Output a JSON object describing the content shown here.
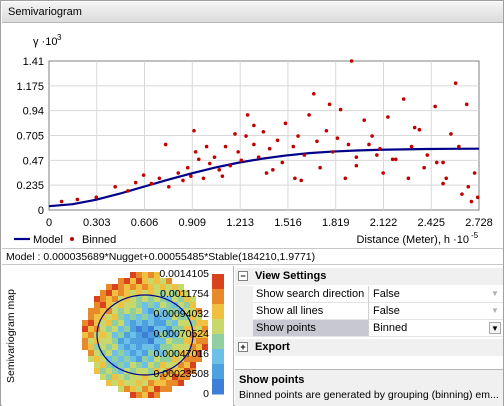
{
  "window": {
    "title": "Semivariogram"
  },
  "chart_data": {
    "type": "scatter",
    "ylabel_text": "γ ·10",
    "ylabel_exp": "3",
    "xlabel_text": "Distance (Meter), h ·10",
    "xlabel_exp": "-5",
    "x_ticks": [
      "0",
      "0.303",
      "0.606",
      "0.909",
      "1.213",
      "1.516",
      "1.819",
      "2.122",
      "2.425",
      "2.728"
    ],
    "y_ticks": [
      "0",
      "0.235",
      "0.47",
      "0.705",
      "0.94",
      "1.175",
      "1.41"
    ],
    "xlim": [
      0,
      2.728
    ],
    "ylim": [
      0,
      1.41
    ],
    "grid": true,
    "legend": [
      "Model",
      "Binned"
    ],
    "legend_position": "bottom-left",
    "colors": {
      "model": "#00008b",
      "binned": "#c00000",
      "grid": "#d8d8d8"
    },
    "model_curve": {
      "x": [
        0.0,
        0.15,
        0.3,
        0.45,
        0.6,
        0.75,
        0.9,
        1.05,
        1.2,
        1.35,
        1.5,
        1.65,
        1.8,
        1.95,
        2.1,
        2.25,
        2.4,
        2.55,
        2.728
      ],
      "y": [
        0.036,
        0.055,
        0.098,
        0.155,
        0.22,
        0.285,
        0.345,
        0.4,
        0.447,
        0.485,
        0.515,
        0.538,
        0.553,
        0.563,
        0.57,
        0.574,
        0.577,
        0.579,
        0.58
      ]
    },
    "binned_points": {
      "x": [
        0.08,
        0.18,
        0.3,
        0.42,
        0.5,
        0.55,
        0.6,
        0.65,
        0.7,
        0.76,
        0.82,
        0.85,
        0.88,
        0.9,
        0.93,
        0.95,
        0.98,
        1.02,
        1.05,
        1.08,
        1.12,
        1.15,
        1.2,
        1.22,
        1.25,
        1.3,
        1.33,
        1.36,
        1.4,
        1.45,
        1.48,
        1.5,
        1.55,
        1.58,
        1.62,
        1.65,
        1.7,
        1.72,
        1.76,
        1.8,
        1.85,
        1.9,
        1.92,
        1.95,
        2.0,
        2.05,
        2.1,
        2.15,
        2.2,
        2.25,
        2.3,
        2.35,
        2.4,
        2.45,
        2.5,
        2.55,
        2.6,
        2.65,
        2.7,
        1.0,
        1.1,
        1.3,
        1.6,
        1.78,
        1.95,
        2.12,
        2.28,
        2.5,
        2.62,
        2.68,
        1.18,
        1.42,
        1.68,
        1.88,
        2.03,
        2.18,
        2.38,
        2.52,
        2.66,
        0.92,
        1.26,
        1.56,
        1.83,
        2.08,
        2.32,
        2.46,
        2.58,
        2.72,
        0.74,
        1.38
      ],
      "y": [
        0.08,
        0.1,
        0.12,
        0.22,
        0.18,
        0.26,
        0.33,
        0.25,
        0.3,
        0.22,
        0.35,
        0.28,
        0.4,
        0.32,
        0.55,
        0.48,
        0.3,
        0.44,
        0.5,
        0.38,
        0.6,
        0.42,
        0.55,
        0.47,
        0.7,
        0.62,
        0.5,
        0.74,
        0.58,
        0.66,
        0.45,
        0.82,
        0.6,
        0.7,
        0.52,
        0.9,
        0.65,
        0.4,
        0.75,
        0.55,
        0.95,
        0.62,
        1.41,
        0.5,
        0.85,
        0.7,
        0.58,
        0.88,
        0.48,
        1.05,
        0.6,
        0.76,
        0.52,
        0.98,
        0.45,
        0.72,
        0.6,
        1.0,
        0.35,
        0.6,
        0.32,
        0.8,
        0.28,
        1.0,
        0.42,
        0.35,
        0.3,
        0.25,
        0.15,
        0.08,
        0.72,
        0.38,
        1.1,
        0.3,
        0.62,
        0.48,
        0.4,
        0.3,
        0.22,
        0.75,
        0.9,
        0.3,
        0.68,
        0.52,
        0.78,
        0.45,
        1.2,
        0.12,
        0.62,
        0.35
      ]
    }
  },
  "model_text": "Model : 0.000035689*Nugget+0.00055485*Stable(184210,1.9771)",
  "map": {
    "label": "Semivariogram map",
    "scale_values": [
      "0.0014105",
      "0.0011754",
      "0.00094032",
      "0.00070524",
      "0.00047016",
      "0.00023508",
      "0"
    ]
  },
  "properties": {
    "view_settings_label": "View Settings",
    "export_label": "Export",
    "rows": [
      {
        "name": "Show search direction",
        "value": "False"
      },
      {
        "name": "Show all lines",
        "value": "False"
      },
      {
        "name": "Show points",
        "value": "Binned"
      }
    ],
    "description_title": "Show points",
    "description_text": "Binned points are generated by grouping (binning) em..."
  }
}
